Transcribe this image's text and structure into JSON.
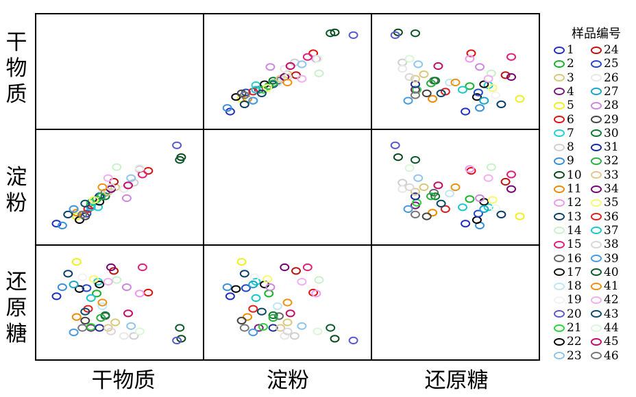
{
  "chart_data": {
    "type": "scatter-matrix",
    "variables": [
      "干物质",
      "淀粉",
      "还原糖"
    ],
    "legend_title": "样品编号",
    "legend_placement": "right",
    "grid": false,
    "colors": {
      "1": "#1f2fbf",
      "2": "#16b42a",
      "3": "#d8c87a",
      "4": "#7a1a7a",
      "5": "#f0f020",
      "6": "#e01010",
      "7": "#20d0d0",
      "8": "#cfcfcf",
      "9": "#3b8fd8",
      "10": "#0b4a1c",
      "11": "#f08a00",
      "12": "#ee99ee",
      "13": "#0b3f66",
      "14": "#c9f0c9",
      "15": "#e0207a",
      "16": "#666666",
      "17": "#111111",
      "18": "#bfe6f6",
      "19": "#f2f2f2",
      "20": "#5a5ad0",
      "21": "#2ad43a",
      "22": "#000000",
      "23": "#8fc6f0",
      "24": "#c01010",
      "25": "#2446c8",
      "26": "#e8e8e8",
      "27": "#1aa6c8",
      "28": "#cc88dd",
      "29": "#444444",
      "30": "#0a7a30",
      "31": "#1a2aa0",
      "32": "#28b040",
      "33": "#e0c890",
      "34": "#7a007a",
      "35": "#f8f870",
      "36": "#e02020",
      "37": "#18c8c8",
      "38": "#d8d8d8",
      "39": "#4a9ae0",
      "40": "#0a5a2a",
      "41": "#f09010",
      "42": "#f0b0f0",
      "43": "#0c4a6a",
      "44": "#d8f8d8",
      "45": "#c80a6a",
      "46": "#777777"
    },
    "samples": [
      {
        "id": "1",
        "dm": 0.06,
        "starch": 0.1,
        "rs": 0.57
      },
      {
        "id": "2",
        "dm": 0.34,
        "starch": 0.37,
        "rs": 0.6
      },
      {
        "id": "3",
        "dm": 0.47,
        "starch": 0.5,
        "rs": 0.28
      },
      {
        "id": "4",
        "dm": 0.3,
        "starch": 0.3,
        "rs": 0.22
      },
      {
        "id": "5",
        "dm": 0.2,
        "starch": 0.18,
        "rs": 0.95
      },
      {
        "id": "6",
        "dm": 0.7,
        "starch": 0.68,
        "rs": 0.61
      },
      {
        "id": "7",
        "dm": 0.35,
        "starch": 0.28,
        "rs": 0.73
      },
      {
        "id": "8",
        "dm": 0.6,
        "starch": 0.55,
        "rs": 0.13
      },
      {
        "id": "9",
        "dm": 0.1,
        "starch": 0.08,
        "rs": 0.67
      },
      {
        "id": "10",
        "dm": 0.93,
        "starch": 0.83,
        "rs": 0.1
      },
      {
        "id": "11",
        "dm": 0.2,
        "starch": 0.22,
        "rs": 0.34
      },
      {
        "id": "12",
        "dm": 0.64,
        "starch": 0.7,
        "rs": 0.6
      },
      {
        "id": "13",
        "dm": 0.14,
        "starch": 0.2,
        "rs": 0.82
      },
      {
        "id": "14",
        "dm": 0.48,
        "starch": 0.72,
        "rs": 0.75
      },
      {
        "id": "15",
        "dm": 0.66,
        "starch": 0.64,
        "rs": 0.89
      },
      {
        "id": "16",
        "dm": 0.4,
        "starch": 0.44,
        "rs": 0.35
      },
      {
        "id": "17",
        "dm": 0.36,
        "starch": 0.34,
        "rs": 0.7
      },
      {
        "id": "18",
        "dm": 0.38,
        "starch": 0.43,
        "rs": 0.46
      },
      {
        "id": "19",
        "dm": 0.24,
        "starch": 0.27,
        "rs": 0.78
      },
      {
        "id": "20",
        "dm": 0.9,
        "starch": 0.96,
        "rs": 0.08
      },
      {
        "id": "21",
        "dm": 0.3,
        "starch": 0.33,
        "rs": 0.23
      },
      {
        "id": "22",
        "dm": 0.22,
        "starch": 0.14,
        "rs": 0.65
      },
      {
        "id": "23",
        "dm": 0.58,
        "starch": 0.6,
        "rs": 0.24
      },
      {
        "id": "24",
        "dm": 0.46,
        "starch": 0.56,
        "rs": 0.85
      },
      {
        "id": "25",
        "dm": 0.27,
        "starch": 0.21,
        "rs": 0.66
      },
      {
        "id": "26",
        "dm": 0.53,
        "starch": 0.48,
        "rs": 0.13
      },
      {
        "id": "27",
        "dm": 0.18,
        "starch": 0.26,
        "rs": 0.7
      },
      {
        "id": "28",
        "dm": 0.55,
        "starch": 0.38,
        "rs": 0.67
      },
      {
        "id": "29",
        "dm": 0.26,
        "starch": 0.18,
        "rs": 0.3
      },
      {
        "id": "30",
        "dm": 0.4,
        "starch": 0.4,
        "rs": 0.36
      },
      {
        "id": "31",
        "dm": 0.36,
        "starch": 0.4,
        "rs": 0.22
      },
      {
        "id": "32",
        "dm": 0.37,
        "starch": 0.4,
        "rs": 0.33
      },
      {
        "id": "33",
        "dm": 0.42,
        "starch": 0.45,
        "rs": 0.22
      },
      {
        "id": "34",
        "dm": 0.44,
        "starch": 0.48,
        "rs": 0.89
      },
      {
        "id": "35",
        "dm": 0.32,
        "starch": 0.36,
        "rs": 0.76
      },
      {
        "id": "36",
        "dm": 0.28,
        "starch": 0.26,
        "rs": 0.43
      },
      {
        "id": "37",
        "dm": 0.3,
        "starch": 0.28,
        "rs": 0.55
      },
      {
        "id": "38",
        "dm": 0.44,
        "starch": 0.5,
        "rs": 0.18
      },
      {
        "id": "39",
        "dm": 0.18,
        "starch": 0.26,
        "rs": 0.17
      },
      {
        "id": "40",
        "dm": 0.92,
        "starch": 0.8,
        "rs": 0.22
      },
      {
        "id": "41",
        "dm": 0.38,
        "starch": 0.5,
        "rs": 0.5
      },
      {
        "id": "42",
        "dm": 0.42,
        "starch": 0.6,
        "rs": 0.73
      },
      {
        "id": "43",
        "dm": 0.26,
        "starch": 0.32,
        "rs": 0.4
      },
      {
        "id": "44",
        "dm": 0.64,
        "starch": 0.71,
        "rs": 0.18
      },
      {
        "id": "45",
        "dm": 0.56,
        "starch": 0.52,
        "rs": 0.38
      },
      {
        "id": "46",
        "dm": 0.24,
        "starch": 0.2,
        "rs": 0.22
      }
    ]
  },
  "labels": {
    "rows": [
      "干物质",
      "淀粉",
      "还原糖"
    ],
    "cols": [
      "干物质",
      "淀粉",
      "还原糖"
    ]
  }
}
